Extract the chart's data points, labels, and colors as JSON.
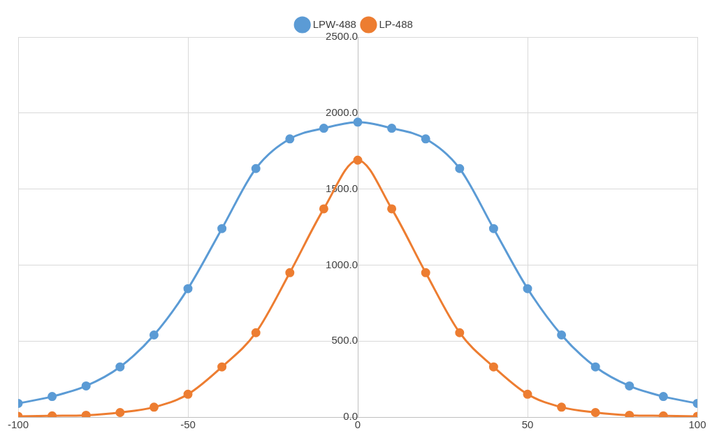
{
  "chart_data": {
    "type": "line",
    "x": [
      -100,
      -90,
      -80,
      -70,
      -60,
      -50,
      -40,
      -30,
      -20,
      -10,
      0,
      10,
      20,
      30,
      40,
      50,
      60,
      70,
      80,
      90,
      100
    ],
    "series": [
      {
        "name": "LPW-488",
        "color": "#5b9bd5",
        "values": [
          90,
          135,
          205,
          330,
          540,
          845,
          1240,
          1635,
          1830,
          1900,
          1940,
          1900,
          1830,
          1635,
          1240,
          845,
          540,
          330,
          205,
          135,
          90
        ]
      },
      {
        "name": "LP-488",
        "color": "#ed7d31",
        "values": [
          5,
          8,
          12,
          30,
          65,
          150,
          330,
          555,
          950,
          1370,
          1690,
          1370,
          950,
          555,
          330,
          150,
          65,
          30,
          12,
          8,
          5
        ]
      }
    ],
    "xlim": [
      -100,
      100
    ],
    "xticks": [
      -100,
      -50,
      0,
      50,
      100
    ],
    "ylim": [
      0,
      2500
    ],
    "yticks": [
      {
        "value": 0,
        "label": "0.0"
      },
      {
        "value": 500,
        "label": "500.0"
      },
      {
        "value": 1000,
        "label": "1000.0"
      },
      {
        "value": 1500,
        "label": "1500.0"
      },
      {
        "value": 2000,
        "label": "2000.0"
      },
      {
        "value": 2500,
        "label": "2500.0"
      }
    ],
    "grid": true,
    "legend": "top",
    "marker": "circle",
    "line_style": "solid"
  }
}
